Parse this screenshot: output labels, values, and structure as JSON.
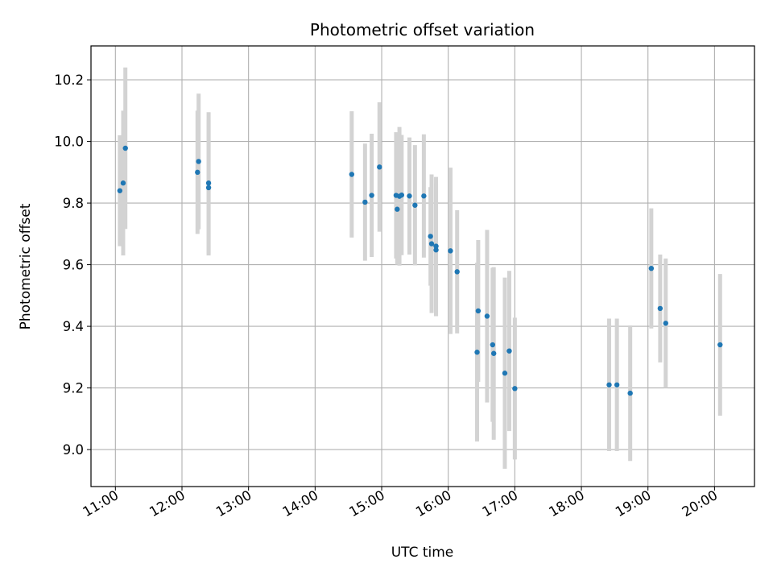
{
  "chart_data": {
    "type": "scatter",
    "title": "Photometric offset variation",
    "xlabel": "UTC time",
    "ylabel": "Photometric offset",
    "grid": true,
    "xlim": [
      "10:38",
      "20:36"
    ],
    "ylim": [
      8.88,
      10.31
    ],
    "xticks": [
      "11:00",
      "12:00",
      "13:00",
      "14:00",
      "15:00",
      "16:00",
      "17:00",
      "18:00",
      "19:00",
      "20:00"
    ],
    "yticks": [
      "9.0",
      "9.2",
      "9.4",
      "9.6",
      "9.8",
      "10.0",
      "10.2"
    ],
    "colors": {
      "point": "#1f77b4",
      "errorbar": "#d3d3d3",
      "grid": "#b0b0b0"
    },
    "points": [
      {
        "x": "11:04",
        "y": 9.84,
        "err": 0.18
      },
      {
        "x": "11:07",
        "y": 9.865,
        "err": 0.235
      },
      {
        "x": "11:09",
        "y": 9.978,
        "err": 0.262
      },
      {
        "x": "12:14",
        "y": 9.9,
        "err": 0.2
      },
      {
        "x": "12:15",
        "y": 9.935,
        "err": 0.22
      },
      {
        "x": "12:24",
        "y": 9.865,
        "err": 0.23
      },
      {
        "x": "12:24",
        "y": 9.85,
        "err": 0.22
      },
      {
        "x": "14:33",
        "y": 9.893,
        "err": 0.205
      },
      {
        "x": "14:45",
        "y": 9.803,
        "err": 0.19
      },
      {
        "x": "14:51",
        "y": 9.825,
        "err": 0.2
      },
      {
        "x": "14:58",
        "y": 9.917,
        "err": 0.21
      },
      {
        "x": "15:13",
        "y": 9.825,
        "err": 0.205
      },
      {
        "x": "15:14",
        "y": 9.78,
        "err": 0.18
      },
      {
        "x": "15:16",
        "y": 9.822,
        "err": 0.225
      },
      {
        "x": "15:18",
        "y": 9.826,
        "err": 0.195
      },
      {
        "x": "15:25",
        "y": 9.823,
        "err": 0.19
      },
      {
        "x": "15:30",
        "y": 9.793,
        "err": 0.195
      },
      {
        "x": "15:38",
        "y": 9.823,
        "err": 0.2
      },
      {
        "x": "15:44",
        "y": 9.692,
        "err": 0.16
      },
      {
        "x": "15:45",
        "y": 9.668,
        "err": 0.225
      },
      {
        "x": "15:49",
        "y": 9.648,
        "err": 0.215
      },
      {
        "x": "15:49",
        "y": 9.66,
        "err": 0.225
      },
      {
        "x": "16:02",
        "y": 9.645,
        "err": 0.27
      },
      {
        "x": "16:08",
        "y": 9.577,
        "err": 0.2
      },
      {
        "x": "16:26",
        "y": 9.316,
        "err": 0.29
      },
      {
        "x": "16:27",
        "y": 9.45,
        "err": 0.23
      },
      {
        "x": "16:35",
        "y": 9.433,
        "err": 0.28
      },
      {
        "x": "16:40",
        "y": 9.34,
        "err": 0.25
      },
      {
        "x": "16:41",
        "y": 9.312,
        "err": 0.28
      },
      {
        "x": "16:51",
        "y": 9.248,
        "err": 0.31
      },
      {
        "x": "16:55",
        "y": 9.32,
        "err": 0.26
      },
      {
        "x": "17:00",
        "y": 9.198,
        "err": 0.23
      },
      {
        "x": "18:25",
        "y": 9.21,
        "err": 0.215
      },
      {
        "x": "18:32",
        "y": 9.21,
        "err": 0.215
      },
      {
        "x": "18:44",
        "y": 9.183,
        "err": 0.22
      },
      {
        "x": "19:03",
        "y": 9.588,
        "err": 0.195
      },
      {
        "x": "19:11",
        "y": 9.458,
        "err": 0.175
      },
      {
        "x": "19:16",
        "y": 9.41,
        "err": 0.21
      },
      {
        "x": "20:05",
        "y": 9.34,
        "err": 0.23
      }
    ]
  }
}
